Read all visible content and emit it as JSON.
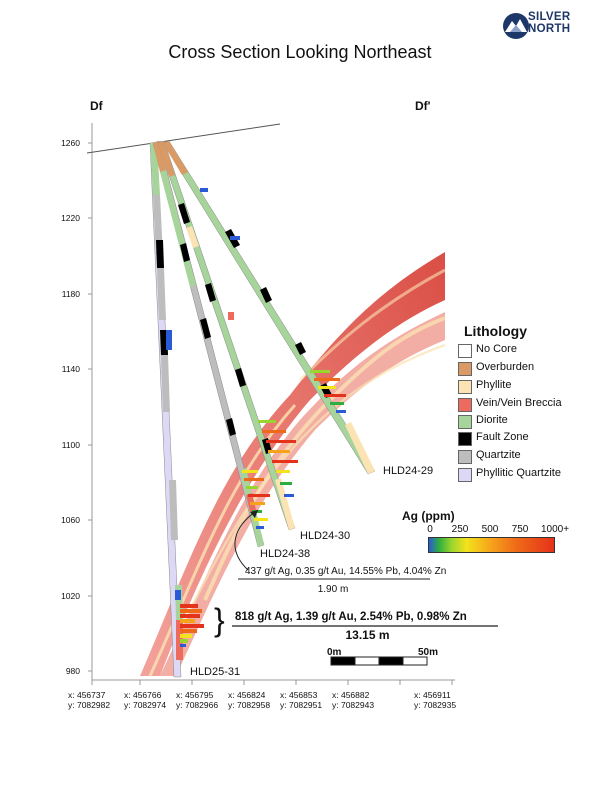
{
  "logo": {
    "line1": "SILVER",
    "line2": "NORTH",
    "icon": "mountain-logo-icon"
  },
  "title": "Cross Section Looking Northeast",
  "section": {
    "left": "Df",
    "right": "Df'"
  },
  "y_axis": {
    "ticks": [
      "1260",
      "1220",
      "1180",
      "1140",
      "1100",
      "1060",
      "1020",
      "980"
    ]
  },
  "legend": {
    "title": "Lithology",
    "items": [
      {
        "label": "No Core",
        "color": "#ffffff"
      },
      {
        "label": "Overburden",
        "color": "#d99a66"
      },
      {
        "label": "Phyllite",
        "color": "#fbe3b4"
      },
      {
        "label": "Vein/Vein Breccia",
        "color": "#ec6b5e"
      },
      {
        "label": "Diorite",
        "color": "#a6d49a"
      },
      {
        "label": "Fault Zone",
        "color": "#000000"
      },
      {
        "label": "Quartzite",
        "color": "#bdbdbd"
      },
      {
        "label": "Phyllitic Quartzite",
        "color": "#dcd8f5"
      }
    ]
  },
  "ag_scale": {
    "title": "Ag (ppm)",
    "ticks": [
      "0",
      "250",
      "500",
      "750",
      "1000+"
    ]
  },
  "holes": [
    "HLD24-29",
    "HLD24-30",
    "HLD24-38",
    "HLD25-31"
  ],
  "annotations": {
    "hld24_38_line1": "437 g/t Ag, 0.35 g/t Au, 14.55% Pb, 4.04% Zn",
    "hld24_38_line2": "1.90 m",
    "hld25_31_line1": "818 g/t Ag, 1.39 g/t Au, 2.54% Pb, 0.98% Zn",
    "hld25_31_line2": "13.15 m"
  },
  "scale_bar": {
    "start": "0m",
    "end": "50m"
  },
  "coordinates": [
    {
      "x": "x: 456737",
      "y": "y: 7082982"
    },
    {
      "x": "x: 456766",
      "y": "y: 7082974"
    },
    {
      "x": "x: 456795",
      "y": "y: 7082966"
    },
    {
      "x": "x: 456824",
      "y": "y: 7082958"
    },
    {
      "x": "x: 456853",
      "y": "y: 7082951"
    },
    {
      "x": "x: 456882",
      "y": "y: 7082943"
    },
    {
      "x": "x: 456911",
      "y": "y: 7082935"
    }
  ]
}
